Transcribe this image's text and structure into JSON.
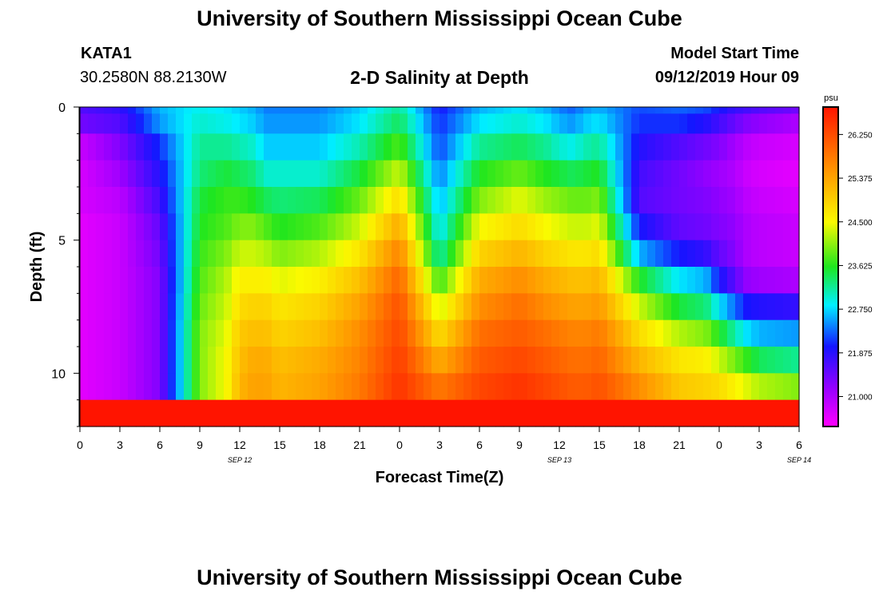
{
  "header": {
    "title": "University of Southern Mississippi Ocean Cube",
    "station_id": "KATA1",
    "station_coords": "30.2580N 88.2130W",
    "plot_title": "2-D Salinity at Depth",
    "model_start_label": "Model Start Time",
    "model_start_value": "09/12/2019 Hour 09"
  },
  "footer": {
    "title": "University of Southern Mississippi Ocean Cube"
  },
  "chart_data": {
    "type": "heatmap",
    "title": "2-D Salinity at Depth",
    "xlabel": "Forecast Time(Z)",
    "ylabel": "Depth (ft)",
    "x_ticks": [
      "0",
      "3",
      "6",
      "9",
      "12",
      "15",
      "18",
      "21",
      "0",
      "3",
      "6",
      "9",
      "12",
      "15",
      "18",
      "21",
      "0",
      "3",
      "6"
    ],
    "date_labels": [
      {
        "label": "SEP 12",
        "hour": 12
      },
      {
        "label": "SEP 13",
        "hour": 36
      },
      {
        "label": "SEP 14",
        "hour": 54
      }
    ],
    "x_range_hours": [
      0,
      54
    ],
    "y_range_ft": [
      0,
      12
    ],
    "y_ticks": [
      "0",
      "5",
      "10"
    ],
    "y_tick_values": [
      0,
      5,
      10
    ],
    "y_minor_tick_values": [
      1,
      2,
      3,
      4,
      6,
      7,
      8,
      9,
      11,
      12
    ],
    "colorbar": {
      "unit": "psu",
      "ticks": [
        "26.250",
        "25.375",
        "24.500",
        "23.625",
        "22.750",
        "21.875",
        "21.000"
      ],
      "tick_values": [
        26.25,
        25.375,
        24.5,
        23.625,
        22.75,
        21.875,
        21.0
      ],
      "range": [
        20.4,
        26.8
      ]
    },
    "layers_depth_ft": [
      0,
      0.5,
      1.5,
      2.5,
      3.5,
      4.5,
      5.5,
      6.5,
      7.5,
      8.5,
      9.5,
      10.5,
      11.5
    ],
    "profile_times_hours": [
      0,
      3,
      6,
      9,
      11,
      12,
      13,
      14,
      15,
      18,
      21,
      24,
      27,
      30,
      33,
      35,
      36,
      37,
      38,
      39,
      42,
      45,
      47,
      48,
      49,
      50,
      51,
      54
    ],
    "salinity_psu": [
      [
        21.6,
        21.4,
        20.8,
        20.7,
        20.7,
        20.6,
        20.6,
        20.6,
        20.6,
        20.6,
        20.6,
        20.6
      ],
      [
        21.8,
        21.6,
        21.3,
        21.1,
        20.9,
        20.8,
        20.8,
        20.8,
        20.8,
        20.8,
        20.8,
        20.8
      ],
      [
        22.6,
        22.5,
        22.1,
        21.9,
        21.7,
        21.5,
        21.4,
        21.3,
        21.3,
        21.3,
        21.3,
        21.3
      ],
      [
        22.9,
        23.0,
        23.2,
        23.3,
        23.5,
        23.6,
        23.7,
        23.8,
        23.9,
        24.0,
        24.0,
        24.0
      ],
      [
        22.8,
        22.9,
        23.2,
        23.5,
        23.7,
        23.8,
        24.0,
        24.2,
        24.3,
        24.4,
        24.5,
        24.5
      ],
      [
        22.7,
        22.8,
        23.1,
        23.4,
        23.7,
        24.0,
        24.3,
        24.6,
        24.8,
        25.0,
        25.1,
        25.2
      ],
      [
        22.6,
        22.7,
        23.0,
        23.3,
        23.6,
        24.0,
        24.3,
        24.6,
        24.9,
        25.1,
        25.3,
        25.4
      ],
      [
        22.4,
        22.5,
        22.7,
        23.0,
        23.4,
        23.8,
        24.2,
        24.6,
        24.9,
        25.1,
        25.3,
        25.4
      ],
      [
        22.4,
        22.5,
        22.7,
        23.0,
        23.3,
        23.6,
        24.0,
        24.4,
        24.7,
        24.9,
        25.1,
        25.2
      ],
      [
        22.4,
        22.5,
        22.7,
        23.0,
        23.4,
        23.8,
        24.2,
        24.6,
        24.9,
        25.1,
        25.3,
        25.4
      ],
      [
        22.7,
        22.8,
        23.1,
        23.5,
        23.9,
        24.3,
        24.7,
        25.1,
        25.4,
        25.6,
        25.7,
        25.8
      ],
      [
        23.2,
        23.4,
        23.8,
        24.3,
        24.8,
        25.3,
        25.7,
        26.0,
        26.2,
        26.3,
        26.4,
        26.5
      ],
      [
        22.0,
        22.1,
        22.2,
        22.4,
        22.6,
        22.8,
        23.1,
        23.7,
        24.3,
        24.8,
        25.3,
        25.8
      ],
      [
        22.6,
        22.8,
        23.2,
        23.6,
        24.0,
        24.5,
        24.9,
        25.3,
        25.6,
        25.9,
        26.1,
        26.3
      ],
      [
        22.8,
        23.0,
        23.4,
        23.9,
        24.4,
        24.8,
        25.2,
        25.6,
        25.9,
        26.1,
        26.3,
        26.5
      ],
      [
        22.6,
        22.8,
        23.2,
        23.6,
        24.1,
        24.5,
        24.9,
        25.3,
        25.6,
        25.9,
        26.1,
        26.3
      ],
      [
        22.4,
        22.6,
        23.0,
        23.5,
        24.0,
        24.4,
        24.8,
        25.2,
        25.5,
        25.8,
        26.0,
        26.2
      ],
      [
        22.3,
        22.5,
        22.9,
        23.4,
        23.9,
        24.3,
        24.7,
        25.1,
        25.4,
        25.7,
        25.9,
        26.1
      ],
      [
        22.5,
        22.7,
        23.1,
        23.5,
        23.9,
        24.3,
        24.7,
        25.1,
        25.4,
        25.7,
        25.9,
        26.1
      ],
      [
        22.6,
        22.8,
        23.2,
        23.6,
        24.0,
        24.4,
        24.8,
        25.2,
        25.5,
        25.8,
        26.0,
        26.2
      ],
      [
        22.2,
        22.1,
        21.9,
        21.7,
        21.6,
        22.0,
        22.6,
        23.6,
        24.3,
        24.8,
        25.2,
        25.6
      ],
      [
        22.3,
        22.1,
        21.6,
        21.4,
        21.4,
        21.5,
        22.0,
        22.8,
        23.5,
        24.2,
        24.7,
        25.0
      ],
      [
        22.2,
        21.9,
        21.4,
        21.2,
        21.3,
        21.4,
        21.8,
        22.6,
        23.3,
        24.0,
        24.6,
        24.9
      ],
      [
        22.0,
        21.7,
        21.3,
        21.1,
        21.2,
        21.3,
        21.5,
        22.0,
        22.8,
        23.6,
        24.3,
        24.8
      ],
      [
        21.8,
        21.5,
        21.1,
        21.0,
        21.1,
        21.2,
        21.3,
        21.6,
        22.4,
        23.2,
        24.0,
        24.6
      ],
      [
        21.7,
        21.3,
        20.9,
        20.8,
        20.9,
        21.0,
        21.0,
        21.2,
        22.0,
        22.8,
        23.7,
        24.4
      ],
      [
        21.6,
        21.2,
        20.8,
        20.7,
        20.8,
        20.9,
        20.9,
        21.1,
        21.9,
        22.6,
        23.4,
        24.2
      ],
      [
        21.4,
        21.0,
        20.7,
        20.6,
        20.7,
        20.8,
        20.8,
        21.0,
        21.8,
        22.5,
        23.2,
        24.0
      ]
    ]
  }
}
